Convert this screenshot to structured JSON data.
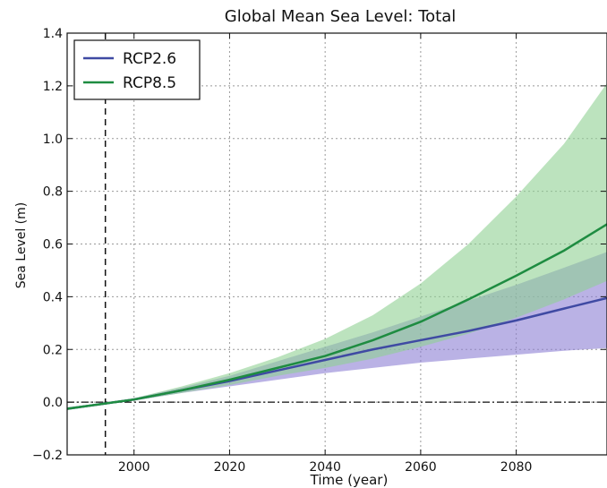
{
  "chart_data": {
    "type": "line",
    "title": "Global Mean Sea Level: Total",
    "xlabel": "Time (year)",
    "ylabel": "Sea Level (m)",
    "xlim": [
      1986,
      2099
    ],
    "ylim": [
      -0.2,
      1.4
    ],
    "xticks": [
      2000,
      2020,
      2040,
      2060,
      2080
    ],
    "yticks": [
      -0.2,
      0.0,
      0.2,
      0.4,
      0.6,
      0.8,
      1.0,
      1.2,
      1.4
    ],
    "ytick_labels": [
      "−0.2",
      "0.0",
      "0.2",
      "0.4",
      "0.6",
      "0.8",
      "1.0",
      "1.2",
      "1.4"
    ],
    "grid": true,
    "legend_position": "top-left",
    "reference_lines": [
      {
        "orientation": "vertical",
        "x": 1994,
        "style": "dashed"
      },
      {
        "orientation": "horizontal",
        "y": 0.0,
        "style": "dash-dot"
      }
    ],
    "series": [
      {
        "name": "RCP2.6",
        "color": "#3f4aa3",
        "band_color": "#8c7fd4",
        "x": [
          1986,
          1994,
          2000,
          2010,
          2020,
          2030,
          2040,
          2050,
          2060,
          2070,
          2080,
          2090,
          2099
        ],
        "values": [
          -0.025,
          -0.005,
          0.01,
          0.045,
          0.08,
          0.12,
          0.16,
          0.2,
          0.235,
          0.27,
          0.31,
          0.355,
          0.395
        ],
        "lower": [
          -0.03,
          -0.008,
          0.006,
          0.035,
          0.06,
          0.085,
          0.11,
          0.13,
          0.15,
          0.165,
          0.18,
          0.195,
          0.205
        ],
        "upper": [
          -0.02,
          -0.002,
          0.015,
          0.055,
          0.1,
          0.155,
          0.21,
          0.265,
          0.325,
          0.385,
          0.445,
          0.51,
          0.57
        ]
      },
      {
        "name": "RCP8.5",
        "color": "#1e8c41",
        "band_color": "#8fd093",
        "x": [
          1986,
          1994,
          2000,
          2010,
          2020,
          2030,
          2040,
          2050,
          2060,
          2070,
          2080,
          2090,
          2099
        ],
        "values": [
          -0.025,
          -0.005,
          0.01,
          0.045,
          0.085,
          0.13,
          0.175,
          0.235,
          0.305,
          0.39,
          0.48,
          0.575,
          0.675
        ],
        "lower": [
          -0.03,
          -0.008,
          0.006,
          0.035,
          0.065,
          0.1,
          0.13,
          0.165,
          0.21,
          0.26,
          0.32,
          0.39,
          0.46
        ],
        "upper": [
          -0.02,
          -0.002,
          0.015,
          0.06,
          0.11,
          0.17,
          0.24,
          0.33,
          0.45,
          0.6,
          0.78,
          0.98,
          1.21
        ]
      }
    ]
  }
}
